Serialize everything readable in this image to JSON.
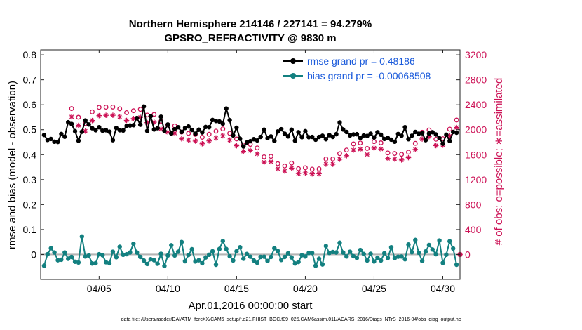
{
  "chart_data": {
    "type": "line",
    "title": "Northern Hemisphere 214146 / 227141 = 94.279%",
    "subtitle": "GPSRO_REFRACTIVITY @ 9830 m",
    "xlabel": "Apr.01,2016 00:00:00 start",
    "ylabel": "rmse and bias (model - observation)",
    "y2label": "# of obs: o=possible; ∗=assimilated",
    "footer": "data file: /Users/raeder/DAI/ATM_forcXX/CAM6_setup/f.e21.FHIST_BGC.f09_025.CAM6assim.011/ACARS_2016/Diags_NTrS_2016-04/obs_diag_output.nc",
    "xlim": [
      0.75,
      31.25
    ],
    "ylim": [
      -0.1,
      0.82
    ],
    "y2lim": [
      -400,
      3280
    ],
    "x_ticks": [
      {
        "value": 5,
        "label": "04/05"
      },
      {
        "value": 10,
        "label": "04/10"
      },
      {
        "value": 15,
        "label": "04/15"
      },
      {
        "value": 20,
        "label": "04/20"
      },
      {
        "value": 25,
        "label": "04/25"
      },
      {
        "value": 30,
        "label": "04/30"
      }
    ],
    "y_ticks": [
      0,
      0.1,
      0.2,
      0.3,
      0.4,
      0.5,
      0.6,
      0.7,
      0.8
    ],
    "y_tick_labels": [
      "0",
      "0.1",
      "0.2",
      "0.3",
      "0.4",
      "0.5",
      "0.6",
      "0.7",
      "0.8"
    ],
    "y2_ticks": [
      0,
      400,
      800,
      1200,
      1600,
      2000,
      2400,
      2800,
      3200
    ],
    "y2_tick_labels": [
      "0",
      "400",
      "800",
      "1200",
      "1600",
      "2000",
      "2400",
      "2800",
      "3200"
    ],
    "legend_position": "top-right",
    "colors": {
      "rmse": "#000000",
      "bias": "#138080",
      "obs": "#cc1155",
      "legend_text": "#1a5adb",
      "zero_line": "#b4b4b4"
    },
    "series": [
      {
        "name": "rmse grand pr = 0.48186",
        "key": "rmse"
      },
      {
        "name": "bias grand pr = -0.00068508",
        "key": "bias"
      }
    ],
    "obs_day": [
      3.0,
      3.5,
      4.0,
      4.5,
      5.0,
      5.5,
      6.0,
      6.5,
      7.0,
      7.5,
      8.0,
      8.5,
      9.0,
      9.5,
      10.0,
      10.5,
      11.0,
      11.5,
      12.0,
      12.5,
      13.0,
      13.5,
      14.0,
      14.5,
      15.0,
      15.5,
      16.0,
      16.5,
      17.0,
      17.5,
      18.0,
      18.5,
      19.0,
      19.5,
      20.0,
      20.5,
      21.0,
      21.5,
      22.0,
      22.5,
      23.0,
      23.5,
      24.0,
      24.5,
      25.0,
      25.5,
      26.0,
      26.5,
      27.0,
      27.5,
      28.0,
      28.5,
      29.0,
      29.5,
      30.0,
      30.5,
      31.0
    ],
    "obs_possible": [
      2339,
      2200,
      2099,
      2286,
      2359,
      2362,
      2364,
      2335,
      2274,
      2304,
      2327,
      2236,
      2246,
      2136,
      2077,
      2061,
      1963,
      1941,
      1925,
      1879,
      1927,
      1977,
      2013,
      1942,
      1851,
      1753,
      1764,
      1708,
      1565,
      1573,
      1455,
      1419,
      1465,
      1375,
      1390,
      1368,
      1372,
      1531,
      1531,
      1616,
      1674,
      1772,
      1787,
      1699,
      1809,
      1789,
      1628,
      1619,
      1606,
      1640,
      1781,
      1960,
      1995,
      1847,
      1856,
      2009,
      2155
    ],
    "obs_assimilated": [
      2207,
      2069,
      1978,
      2147,
      2226,
      2231,
      2232,
      2206,
      2149,
      2179,
      2198,
      2113,
      2120,
      2013,
      1961,
      1943,
      1854,
      1833,
      1818,
      1775,
      1820,
      1868,
      1903,
      1835,
      1743,
      1652,
      1667,
      1613,
      1479,
      1486,
      1374,
      1338,
      1384,
      1298,
      1309,
      1293,
      1295,
      1448,
      1447,
      1527,
      1583,
      1674,
      1688,
      1603,
      1706,
      1690,
      1538,
      1529,
      1515,
      1552,
      1683,
      1851,
      1889,
      1745,
      1753,
      1898,
      2035
    ],
    "obs_zero_day": 31.25,
    "rmse_day": [
      1.0,
      1.25,
      1.5,
      1.75,
      2.0,
      2.25,
      2.5,
      2.75,
      3.0,
      3.25,
      3.5,
      3.75,
      4.0,
      4.25,
      4.5,
      4.75,
      5.0,
      5.25,
      5.5,
      5.75,
      6.0,
      6.25,
      6.5,
      6.75,
      7.0,
      7.25,
      7.5,
      7.75,
      8.0,
      8.25,
      8.5,
      8.75,
      9.0,
      9.25,
      9.5,
      9.75,
      10.0,
      10.25,
      10.5,
      10.75,
      11.0,
      11.25,
      11.5,
      11.75,
      12.0,
      12.25,
      12.5,
      12.75,
      13.0,
      13.25,
      13.5,
      13.75,
      14.0,
      14.25,
      14.5,
      14.75,
      15.0,
      15.25,
      15.5,
      15.75,
      16.0,
      16.25,
      16.5,
      16.75,
      17.0,
      17.25,
      17.5,
      17.75,
      18.0,
      18.25,
      18.5,
      18.75,
      19.0,
      19.25,
      19.5,
      19.75,
      20.0,
      20.25,
      20.5,
      20.75,
      21.0,
      21.25,
      21.5,
      21.75,
      22.0,
      22.25,
      22.5,
      22.75,
      23.0,
      23.25,
      23.5,
      23.75,
      24.0,
      24.25,
      24.5,
      24.75,
      25.0,
      25.25,
      25.5,
      25.75,
      26.0,
      26.25,
      26.5,
      26.75,
      27.0,
      27.25,
      27.5,
      27.75,
      28.0,
      28.25,
      28.5,
      28.75,
      29.0,
      29.25,
      29.5,
      29.75,
      30.0,
      30.25,
      30.5,
      30.75,
      31.0
    ],
    "rmse": [
      0.479,
      0.459,
      0.463,
      0.452,
      0.451,
      0.483,
      0.472,
      0.53,
      0.523,
      0.494,
      0.456,
      0.492,
      0.537,
      0.521,
      0.506,
      0.498,
      0.51,
      0.496,
      0.498,
      0.492,
      0.458,
      0.507,
      0.498,
      0.497,
      0.515,
      0.517,
      0.518,
      0.547,
      0.52,
      0.593,
      0.495,
      0.554,
      0.501,
      0.506,
      0.552,
      0.495,
      0.521,
      0.485,
      0.502,
      0.51,
      0.491,
      0.507,
      0.513,
      0.499,
      0.484,
      0.5,
      0.489,
      0.511,
      0.51,
      0.539,
      0.535,
      0.533,
      0.524,
      0.585,
      0.538,
      0.477,
      0.508,
      0.464,
      0.433,
      0.449,
      0.454,
      0.462,
      0.457,
      0.471,
      0.5,
      0.466,
      0.473,
      0.455,
      0.493,
      0.502,
      0.484,
      0.473,
      0.5,
      0.456,
      0.49,
      0.47,
      0.494,
      0.47,
      0.471,
      0.46,
      0.471,
      0.476,
      0.462,
      0.478,
      0.471,
      0.482,
      0.529,
      0.501,
      0.491,
      0.477,
      0.481,
      0.482,
      0.467,
      0.477,
      0.475,
      0.484,
      0.469,
      0.49,
      0.48,
      0.463,
      0.467,
      0.46,
      0.452,
      0.483,
      0.476,
      0.51,
      0.462,
      0.476,
      0.491,
      0.484,
      0.486,
      0.458,
      0.485,
      0.49,
      0.481,
      0.466,
      0.444,
      0.48,
      0.455,
      0.491,
      0.488
    ],
    "bias_day": [
      1.0,
      1.25,
      1.5,
      1.75,
      2.0,
      2.25,
      2.5,
      2.75,
      3.0,
      3.25,
      3.5,
      3.75,
      4.0,
      4.25,
      4.5,
      4.75,
      5.0,
      5.25,
      5.5,
      5.75,
      6.0,
      6.25,
      6.5,
      6.75,
      7.0,
      7.25,
      7.5,
      7.75,
      8.0,
      8.25,
      8.5,
      8.75,
      9.0,
      9.25,
      9.5,
      9.75,
      10.0,
      10.25,
      10.5,
      10.75,
      11.0,
      11.25,
      11.5,
      11.75,
      12.0,
      12.25,
      12.5,
      12.75,
      13.0,
      13.25,
      13.5,
      13.75,
      14.0,
      14.25,
      14.5,
      14.75,
      15.0,
      15.25,
      15.5,
      15.75,
      16.0,
      16.25,
      16.5,
      16.75,
      17.0,
      17.25,
      17.5,
      17.75,
      18.0,
      18.25,
      18.5,
      18.75,
      19.0,
      19.25,
      19.5,
      19.75,
      20.0,
      20.25,
      20.5,
      20.75,
      21.0,
      21.25,
      21.5,
      21.75,
      22.0,
      22.25,
      22.5,
      22.75,
      23.0,
      23.25,
      23.5,
      23.75,
      24.0,
      24.25,
      24.5,
      24.75,
      25.0,
      25.25,
      25.5,
      25.75,
      26.0,
      26.25,
      26.5,
      26.75,
      27.0,
      27.25,
      27.5,
      27.75,
      28.0,
      28.25,
      28.5,
      28.75,
      29.0,
      29.25,
      29.5,
      29.75,
      30.0,
      30.25,
      30.5,
      30.75,
      31.0
    ],
    "bias": [
      -0.045,
      0.001,
      0.025,
      0.008,
      -0.023,
      -0.021,
      0.008,
      -0.017,
      -0.01,
      -0.029,
      -0.032,
      0.072,
      -0.008,
      -0.004,
      -0.036,
      -0.035,
      0.001,
      -0.003,
      -0.031,
      -0.035,
      0.011,
      -0.011,
      0.031,
      -0.001,
      0.001,
      0.008,
      0.043,
      0.008,
      -0.01,
      -0.024,
      -0.038,
      -0.019,
      -0.023,
      -0.037,
      0.003,
      -0.046,
      -0.004,
      0.037,
      -0.004,
      0.011,
      0.05,
      -0.027,
      -0.002,
      0.021,
      -0.028,
      -0.023,
      -0.035,
      -0.012,
      -0.001,
      0.013,
      -0.041,
      0.022,
      0.054,
      0.022,
      -0.007,
      -0.024,
      0.013,
      0.029,
      -0.017,
      0.002,
      -0.009,
      -0.024,
      -0.033,
      -0.01,
      -0.009,
      -0.026,
      -0.01,
      0.025,
      0.014,
      -0.022,
      -0.01,
      0.005,
      -0.012,
      -0.036,
      -0.03,
      -0.003,
      -0.008,
      0.006,
      0.006,
      -0.045,
      -0.017,
      -0.04,
      0.034,
      0.006,
      0.01,
      0.008,
      0.047,
      0.008,
      -0.008,
      0.011,
      -0.007,
      -0.014,
      0.018,
      0.002,
      -0.024,
      0.003,
      -0.028,
      -0.013,
      -0.024,
      0.005,
      -0.014,
      0.029,
      -0.015,
      -0.009,
      -0.008,
      -0.019,
      0.04,
      0.009,
      0.058,
      0.007,
      -0.026,
      0.012,
      0.038,
      0.02,
      0.001,
      0.056,
      -0.034,
      -0.001,
      0.053,
      0.024,
      -0.041
    ]
  }
}
